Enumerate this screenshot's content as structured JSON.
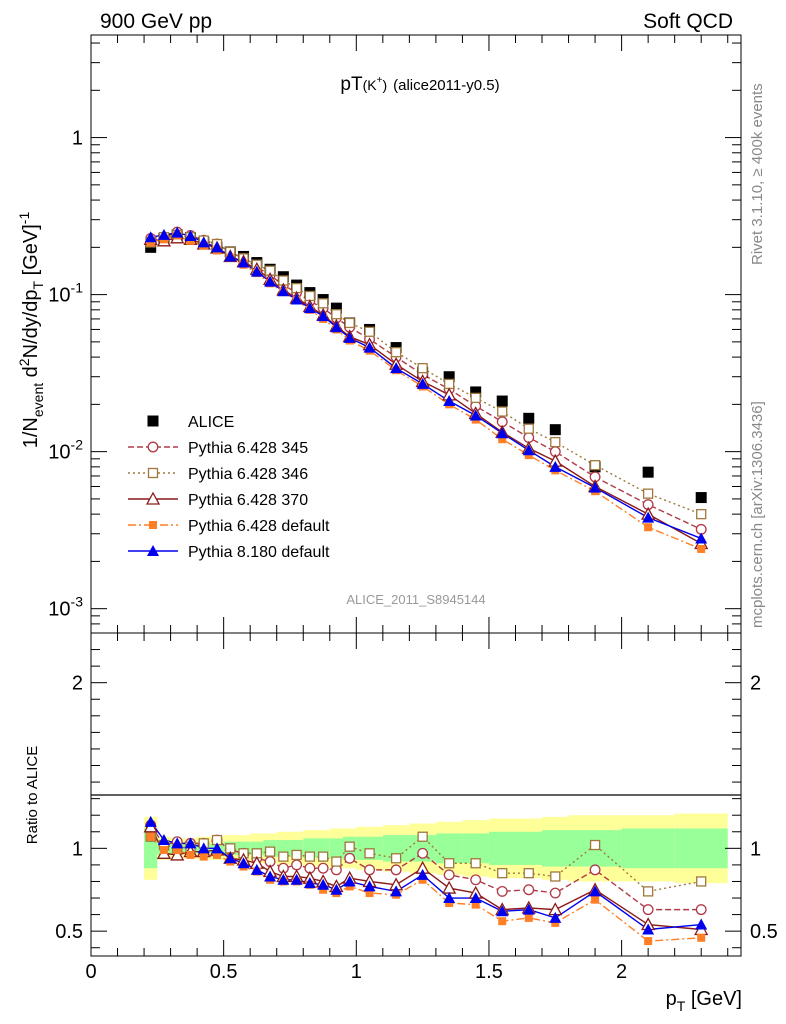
{
  "header": {
    "left": "900 GeV pp",
    "right": "Soft QCD"
  },
  "side_text": {
    "rivet_pre": "Rivet 3.1.10, ",
    "rivet_ge": "≥",
    "rivet_post": " 400k events",
    "mcplots": "mcplots.cern.ch [arXiv:1306.3436]"
  },
  "plot_title": {
    "main": "pT",
    "sup_k": "(K",
    "sup_plus": "+",
    "sup_close": ")",
    "sub": "(alice2011-y0.5)"
  },
  "analysis_label": "ALICE_2011_S8945144",
  "chart_data": [
    {
      "type": "scatter",
      "title": "pT(K+) (alice2011-y0.5)",
      "xlabel": "p_T [GeV]",
      "ylabel": "1/N_event d2N/dy/dp_T [GeV]^-1",
      "ylabel_parts": {
        "a": "1/N",
        "b": "event",
        "c": " d",
        "d": "2",
        "e": "N/dy/dp",
        "f": "T",
        "g": " [GeV]",
        "h": "-1"
      },
      "xlabel_parts": {
        "a": "p",
        "b": "T",
        "c": " [GeV]"
      },
      "y_scale": "log",
      "xlim": [
        0,
        2.45
      ],
      "ylim": [
        0.0007,
        4.5
      ],
      "y_ticks": [
        {
          "value": 0.001,
          "base": "10",
          "exp": "-3"
        },
        {
          "value": 0.01,
          "base": "10",
          "exp": "-2"
        },
        {
          "value": 0.1,
          "base": "10",
          "exp": "-1"
        },
        {
          "value": 1,
          "base": "1",
          "exp": ""
        }
      ],
      "x": [
        0.225,
        0.275,
        0.325,
        0.375,
        0.425,
        0.475,
        0.525,
        0.575,
        0.625,
        0.675,
        0.725,
        0.775,
        0.825,
        0.875,
        0.925,
        0.975,
        1.05,
        1.15,
        1.25,
        1.35,
        1.45,
        1.55,
        1.65,
        1.75,
        1.9,
        2.1,
        2.3
      ],
      "legend_position": "lower-left",
      "series": [
        {
          "name": "ALICE",
          "color": "#000000",
          "marker": "filled-square",
          "line": "none",
          "values": [
            0.2,
            0.228,
            0.24,
            0.23,
            0.215,
            0.2,
            0.187,
            0.175,
            0.16,
            0.145,
            0.13,
            0.115,
            0.103,
            0.093,
            0.082,
            0.066,
            0.06,
            0.046,
            0.032,
            0.03,
            0.024,
            0.021,
            0.0163,
            0.0138,
            0.008,
            0.0074,
            0.0051
          ]
        },
        {
          "name": "Pythia 6.428 345",
          "color": "#b03a48",
          "marker": "open-circle",
          "line": "dashed",
          "values": [
            0.228,
            0.232,
            0.25,
            0.238,
            0.222,
            0.21,
            0.186,
            0.17,
            0.15,
            0.133,
            0.115,
            0.103,
            0.091,
            0.082,
            0.071,
            0.062,
            0.052,
            0.04,
            0.031,
            0.025,
            0.0195,
            0.0155,
            0.0123,
            0.01,
            0.0069,
            0.0046,
            0.0032
          ]
        },
        {
          "name": "Pythia 6.428 346",
          "color": "#a0783c",
          "marker": "open-square",
          "line": "dotted",
          "values": [
            0.215,
            0.232,
            0.24,
            0.232,
            0.221,
            0.21,
            0.187,
            0.17,
            0.155,
            0.142,
            0.123,
            0.11,
            0.098,
            0.088,
            0.075,
            0.066,
            0.058,
            0.043,
            0.034,
            0.027,
            0.022,
            0.018,
            0.014,
            0.0115,
            0.0082,
            0.0054,
            0.004
          ]
        },
        {
          "name": "Pythia 6.428 370",
          "color": "#8b1a1a",
          "marker": "open-triangle",
          "line": "solid",
          "values": [
            0.225,
            0.22,
            0.23,
            0.225,
            0.21,
            0.198,
            0.175,
            0.162,
            0.145,
            0.125,
            0.107,
            0.095,
            0.084,
            0.074,
            0.063,
            0.054,
            0.048,
            0.036,
            0.028,
            0.023,
            0.0175,
            0.0133,
            0.0105,
            0.0087,
            0.006,
            0.004,
            0.0026
          ]
        },
        {
          "name": "Pythia 6.428 default",
          "color": "#ff7f27",
          "marker": "filled-square-small",
          "line": "dashdot",
          "values": [
            0.215,
            0.225,
            0.238,
            0.22,
            0.205,
            0.191,
            0.172,
            0.155,
            0.137,
            0.118,
            0.104,
            0.092,
            0.08,
            0.07,
            0.06,
            0.051,
            0.044,
            0.033,
            0.026,
            0.02,
            0.016,
            0.012,
            0.0095,
            0.0076,
            0.0056,
            0.0033,
            0.0024
          ]
        },
        {
          "name": "Pythia 8.180 default",
          "color": "#0000ee",
          "marker": "filled-triangle",
          "line": "solid",
          "values": [
            0.232,
            0.24,
            0.248,
            0.236,
            0.215,
            0.2,
            0.175,
            0.16,
            0.14,
            0.121,
            0.105,
            0.093,
            0.082,
            0.073,
            0.062,
            0.053,
            0.046,
            0.034,
            0.027,
            0.021,
            0.017,
            0.0131,
            0.0102,
            0.008,
            0.0059,
            0.0038,
            0.0028
          ]
        }
      ]
    },
    {
      "type": "line",
      "title": "",
      "xlabel": "p_T [GeV]",
      "ylabel": "Ratio to ALICE",
      "y_scale": "linear",
      "xlim": [
        0,
        2.45
      ],
      "ylim": [
        0.35,
        2.3
      ],
      "y_ticks": [
        0.5,
        1,
        2
      ],
      "x_ticks": [
        0,
        0.5,
        1,
        1.5,
        2
      ],
      "x_tick_labels": [
        "0",
        "0.5",
        "1",
        "1.5",
        "2"
      ],
      "reference_line": 1,
      "bands": {
        "x_edges": [
          0.2,
          0.25,
          0.3,
          0.35,
          0.4,
          0.45,
          0.5,
          0.55,
          0.6,
          0.65,
          0.7,
          0.75,
          0.8,
          0.85,
          0.9,
          0.95,
          1.0,
          1.1,
          1.2,
          1.3,
          1.4,
          1.5,
          1.6,
          1.7,
          1.8,
          2.0,
          2.2,
          2.4
        ],
        "outer_half_width": [
          0.19,
          0.07,
          0.06,
          0.06,
          0.07,
          0.07,
          0.08,
          0.08,
          0.09,
          0.09,
          0.1,
          0.1,
          0.11,
          0.11,
          0.12,
          0.12,
          0.13,
          0.14,
          0.15,
          0.16,
          0.17,
          0.18,
          0.18,
          0.19,
          0.2,
          0.2,
          0.21
        ],
        "inner_half_width": [
          0.12,
          0.04,
          0.03,
          0.03,
          0.03,
          0.03,
          0.04,
          0.04,
          0.04,
          0.05,
          0.05,
          0.05,
          0.06,
          0.06,
          0.06,
          0.07,
          0.07,
          0.08,
          0.08,
          0.09,
          0.09,
          0.1,
          0.1,
          0.11,
          0.11,
          0.12,
          0.12
        ],
        "outer_color": "#ffff99",
        "inner_color": "#99ff99"
      },
      "series": [
        {
          "name": "Pythia 6.428 345",
          "values": [
            1.14,
            1.02,
            1.04,
            1.03,
            1.03,
            1.05,
            0.99,
            0.97,
            0.94,
            0.92,
            0.88,
            0.9,
            0.88,
            0.88,
            0.87,
            0.94,
            0.87,
            0.87,
            0.97,
            0.84,
            0.81,
            0.74,
            0.75,
            0.73,
            0.87,
            0.63,
            0.63
          ]
        },
        {
          "name": "Pythia 6.428 346",
          "values": [
            1.07,
            1.02,
            1.0,
            1.01,
            1.03,
            1.05,
            1.0,
            0.97,
            0.97,
            0.98,
            0.95,
            0.96,
            0.95,
            0.95,
            0.92,
            1.01,
            0.97,
            0.94,
            1.07,
            0.91,
            0.91,
            0.85,
            0.85,
            0.83,
            1.02,
            0.74,
            0.8
          ]
        },
        {
          "name": "Pythia 6.428 370",
          "values": [
            1.13,
            0.97,
            0.96,
            0.98,
            0.98,
            0.99,
            0.94,
            0.93,
            0.91,
            0.86,
            0.83,
            0.83,
            0.82,
            0.8,
            0.77,
            0.82,
            0.8,
            0.78,
            0.88,
            0.76,
            0.73,
            0.63,
            0.64,
            0.63,
            0.75,
            0.54,
            0.51
          ]
        },
        {
          "name": "Pythia 6.428 default",
          "values": [
            1.07,
            0.99,
            0.99,
            0.96,
            0.95,
            0.96,
            0.92,
            0.89,
            0.86,
            0.81,
            0.8,
            0.8,
            0.78,
            0.75,
            0.73,
            0.77,
            0.73,
            0.72,
            0.81,
            0.67,
            0.66,
            0.56,
            0.58,
            0.55,
            0.69,
            0.44,
            0.46
          ]
        },
        {
          "name": "Pythia 8.180 default",
          "values": [
            1.16,
            1.05,
            1.03,
            1.03,
            1.0,
            1.0,
            0.94,
            0.91,
            0.87,
            0.83,
            0.81,
            0.81,
            0.79,
            0.78,
            0.75,
            0.8,
            0.77,
            0.74,
            0.84,
            0.7,
            0.7,
            0.62,
            0.63,
            0.58,
            0.74,
            0.51,
            0.54
          ]
        }
      ]
    }
  ]
}
